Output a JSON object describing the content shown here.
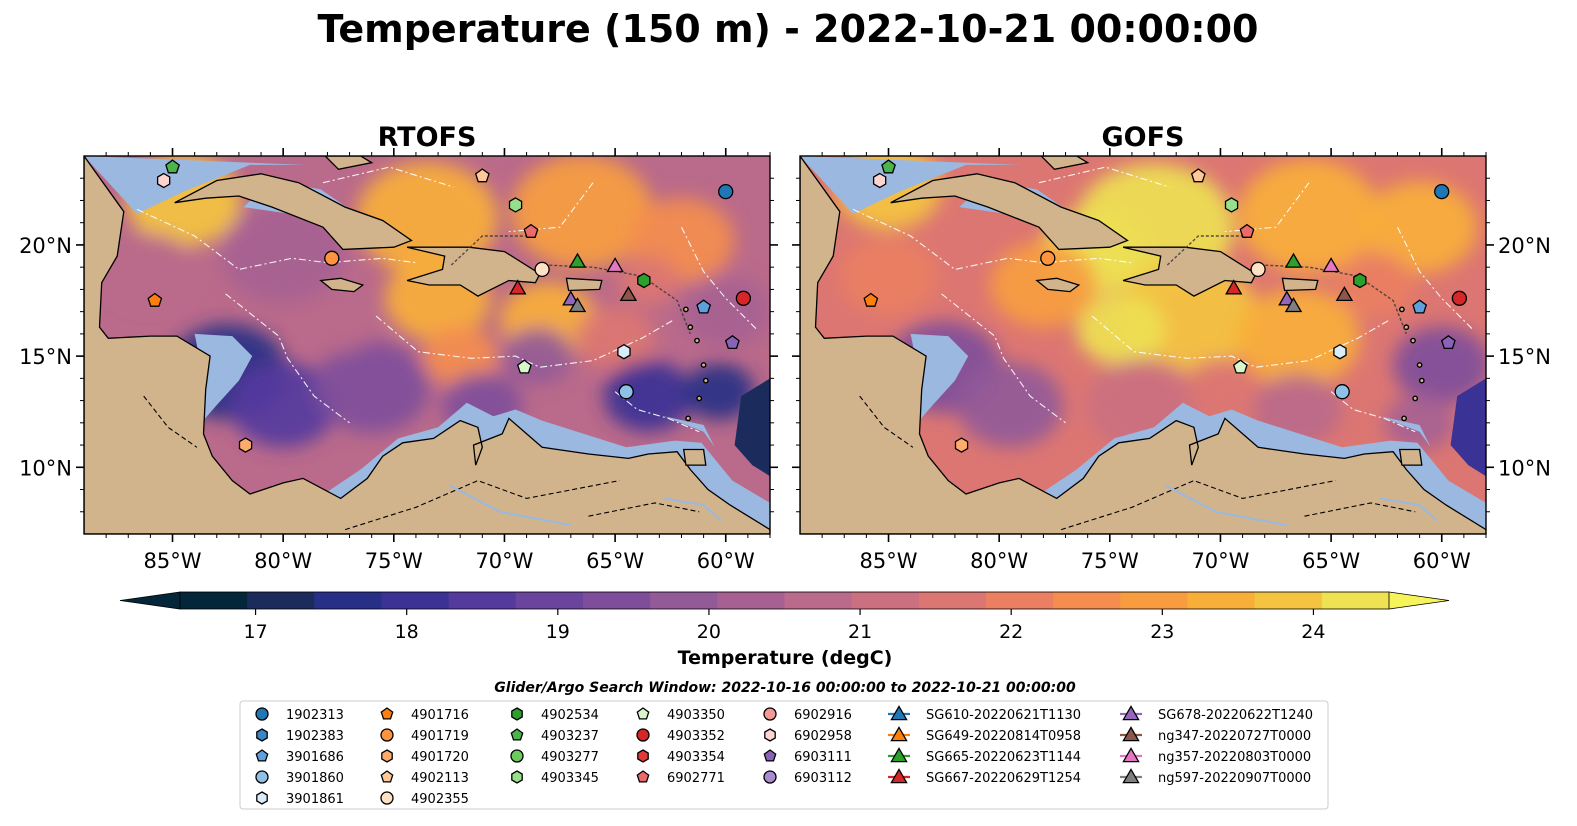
{
  "title": "Temperature (150 m) - 2022-10-21 00:00:00",
  "panels": [
    {
      "title": "RTOFS",
      "model": "rtofs"
    },
    {
      "title": "GOFS",
      "model": "gofs"
    }
  ],
  "colorbar": {
    "label": "Temperature (degC)",
    "ticks": [
      "17",
      "18",
      "19",
      "20",
      "21",
      "22",
      "23",
      "24"
    ],
    "min": 16.5,
    "max": 24.5,
    "colors": [
      "#03263a",
      "#1b2c5c",
      "#272f86",
      "#3a3295",
      "#553a9e",
      "#6b449d",
      "#7f4e9b",
      "#935a98",
      "#a66192",
      "#ba6a8a",
      "#cb7080",
      "#dc7672",
      "#ea7f62",
      "#f48d4e",
      "#f79d40",
      "#f8af39",
      "#f4c441",
      "#eee152"
    ],
    "extend": "both"
  },
  "search_window": "Glider/Argo Search Window: 2022-10-16 00:00:00 to 2022-10-21 00:00:00",
  "lon_ticks": [
    "85°W",
    "80°W",
    "75°W",
    "70°W",
    "65°W",
    "60°W"
  ],
  "lat_ticks": [
    "20°N",
    "15°N",
    "10°N"
  ],
  "legend": [
    [
      {
        "label": "1902313",
        "marker": "circle",
        "color": "#1f77b4"
      },
      {
        "label": "1902383",
        "marker": "hexagon",
        "color": "#3b86c7"
      },
      {
        "label": "3901686",
        "marker": "pentagon",
        "color": "#5ea0de"
      },
      {
        "label": "3901860",
        "marker": "circle",
        "color": "#8fc1e8"
      },
      {
        "label": "3901861",
        "marker": "hexagon",
        "color": "#d9ecf9"
      }
    ],
    [
      {
        "label": "4901716",
        "marker": "pentagon",
        "color": "#ff7f0e"
      },
      {
        "label": "4901719",
        "marker": "circle",
        "color": "#ff943f"
      },
      {
        "label": "4901720",
        "marker": "hexagon",
        "color": "#ffab6b"
      },
      {
        "label": "4902113",
        "marker": "pentagon",
        "color": "#ffc896"
      },
      {
        "label": "4902355",
        "marker": "circle",
        "color": "#ffe2c4"
      }
    ],
    [
      {
        "label": "4902534",
        "marker": "hexagon",
        "color": "#2ca02c"
      },
      {
        "label": "4903237",
        "marker": "pentagon",
        "color": "#4bb54b"
      },
      {
        "label": "4903277",
        "marker": "circle",
        "color": "#6ccb5c"
      },
      {
        "label": "4903345",
        "marker": "hexagon",
        "color": "#98df8a"
      }
    ],
    [
      {
        "label": "4903350",
        "marker": "pentagon",
        "color": "#d8f5cc"
      },
      {
        "label": "4903352",
        "marker": "circle",
        "color": "#d62728"
      },
      {
        "label": "4903354",
        "marker": "hexagon",
        "color": "#e03a3a"
      },
      {
        "label": "6902771",
        "marker": "pentagon",
        "color": "#ec6a6a"
      }
    ],
    [
      {
        "label": "6902916",
        "marker": "circle",
        "color": "#f49a96"
      },
      {
        "label": "6902958",
        "marker": "hexagon",
        "color": "#fdd4d0"
      },
      {
        "label": "6903111",
        "marker": "pentagon",
        "color": "#8a63b8"
      },
      {
        "label": "6903112",
        "marker": "circle",
        "color": "#a98bd1"
      }
    ],
    [
      {
        "label": "SG610-20220621T1130",
        "marker": "triangle-line",
        "color": "#1f77b4"
      },
      {
        "label": "SG649-20220814T0958",
        "marker": "triangle-line",
        "color": "#ff7f0e"
      },
      {
        "label": "SG665-20220623T1144",
        "marker": "triangle-line",
        "color": "#2ca02c"
      },
      {
        "label": "SG667-20220629T1254",
        "marker": "triangle-line",
        "color": "#d62728"
      }
    ],
    [
      {
        "label": "SG678-20220622T1240",
        "marker": "triangle-line",
        "color": "#9467bd"
      },
      {
        "label": "ng347-20220727T0000",
        "marker": "triangle-line",
        "color": "#8c564b"
      },
      {
        "label": "ng357-20220803T0000",
        "marker": "triangle-line",
        "color": "#e377c2"
      },
      {
        "label": "ng597-20220907T0000",
        "marker": "triangle-line",
        "color": "#7f7f7f"
      }
    ]
  ],
  "chart_data": [
    {
      "type": "heatmap",
      "title": "RTOFS",
      "variable": "Temperature (150 m)",
      "units": "degC",
      "lon_range": [
        -89,
        -58
      ],
      "lat_range": [
        7,
        24
      ],
      "lon_ticks": [
        -85,
        -80,
        -75,
        -70,
        -65,
        -60
      ],
      "lat_ticks": [
        20,
        15,
        10
      ],
      "color_range": [
        16.5,
        24.5
      ],
      "pattern": "warm patches 22-24 degC around Greater Antilles and NE Caribbean; cooler 17-19 degC in southwest and central basin",
      "markers": [
        {
          "label": "1902313",
          "lon": -60.0,
          "lat": 22.4
        },
        {
          "label": "6902958",
          "lon": -85.4,
          "lat": 22.9
        },
        {
          "label": "4903237",
          "lon": -85.0,
          "lat": 23.5
        },
        {
          "label": "4902113",
          "lon": -71.0,
          "lat": 23.1
        },
        {
          "label": "4903345",
          "lon": -69.5,
          "lat": 21.8
        },
        {
          "label": "6902771",
          "lon": -68.8,
          "lat": 20.6
        },
        {
          "label": "4901719",
          "lon": -77.8,
          "lat": 19.4
        },
        {
          "label": "4902355",
          "lon": -68.3,
          "lat": 18.9
        },
        {
          "label": "4901716",
          "lon": -85.8,
          "lat": 17.5
        },
        {
          "label": "SG665-20220623T1144",
          "lon": -66.7,
          "lat": 19.3
        },
        {
          "label": "ng357-20220803T0000",
          "lon": -65.0,
          "lat": 19.1
        },
        {
          "label": "4902534",
          "lon": -63.7,
          "lat": 18.4
        },
        {
          "label": "SG667-20220629T1254",
          "lon": -69.4,
          "lat": 18.1
        },
        {
          "label": "SG678-20220622T1240",
          "lon": -67.0,
          "lat": 17.6
        },
        {
          "label": "ng597-20220907T0000",
          "lon": -66.7,
          "lat": 17.3
        },
        {
          "label": "ng347-20220727T0000",
          "lon": -64.4,
          "lat": 17.8
        },
        {
          "label": "3901686",
          "lon": -61.0,
          "lat": 17.2
        },
        {
          "label": "4903352",
          "lon": -59.2,
          "lat": 17.6
        },
        {
          "label": "6903111",
          "lon": -59.7,
          "lat": 15.6
        },
        {
          "label": "3901861",
          "lon": -64.6,
          "lat": 15.2
        },
        {
          "label": "4903350",
          "lon": -69.1,
          "lat": 14.5
        },
        {
          "label": "3901860",
          "lon": -64.5,
          "lat": 13.4
        },
        {
          "label": "4901720",
          "lon": -81.7,
          "lat": 11.0
        }
      ]
    },
    {
      "type": "heatmap",
      "title": "GOFS",
      "variable": "Temperature (150 m)",
      "units": "degC",
      "lon_range": [
        -89,
        -58
      ],
      "lat_range": [
        7,
        24
      ],
      "lon_ticks": [
        -85,
        -80,
        -75,
        -70,
        -65,
        -60
      ],
      "lat_ticks": [
        20,
        15,
        10
      ],
      "color_range": [
        16.5,
        24.5
      ],
      "pattern": "broad warm 22-24.5 degC in central and northern Caribbean; cooler 18-20 degC in southwest basin",
      "markers": [
        {
          "label": "1902313",
          "lon": -60.0,
          "lat": 22.4
        },
        {
          "label": "6902958",
          "lon": -85.4,
          "lat": 22.9
        },
        {
          "label": "4903237",
          "lon": -85.0,
          "lat": 23.5
        },
        {
          "label": "4902113",
          "lon": -71.0,
          "lat": 23.1
        },
        {
          "label": "4903345",
          "lon": -69.5,
          "lat": 21.8
        },
        {
          "label": "6902771",
          "lon": -68.8,
          "lat": 20.6
        },
        {
          "label": "4901719",
          "lon": -77.8,
          "lat": 19.4
        },
        {
          "label": "4902355",
          "lon": -68.3,
          "lat": 18.9
        },
        {
          "label": "4901716",
          "lon": -85.8,
          "lat": 17.5
        },
        {
          "label": "SG665-20220623T1144",
          "lon": -66.7,
          "lat": 19.3
        },
        {
          "label": "ng357-20220803T0000",
          "lon": -65.0,
          "lat": 19.1
        },
        {
          "label": "4902534",
          "lon": -63.7,
          "lat": 18.4
        },
        {
          "label": "SG667-20220629T1254",
          "lon": -69.4,
          "lat": 18.1
        },
        {
          "label": "SG678-20220622T1240",
          "lon": -67.0,
          "lat": 17.6
        },
        {
          "label": "ng597-20220907T0000",
          "lon": -66.7,
          "lat": 17.3
        },
        {
          "label": "ng347-20220727T0000",
          "lon": -64.4,
          "lat": 17.8
        },
        {
          "label": "3901686",
          "lon": -61.0,
          "lat": 17.2
        },
        {
          "label": "4903352",
          "lon": -59.2,
          "lat": 17.6
        },
        {
          "label": "6903111",
          "lon": -59.7,
          "lat": 15.6
        },
        {
          "label": "3901861",
          "lon": -64.6,
          "lat": 15.2
        },
        {
          "label": "4903350",
          "lon": -69.1,
          "lat": 14.5
        },
        {
          "label": "3901860",
          "lon": -64.5,
          "lat": 13.4
        },
        {
          "label": "4901720",
          "lon": -81.7,
          "lat": 11.0
        }
      ]
    }
  ]
}
